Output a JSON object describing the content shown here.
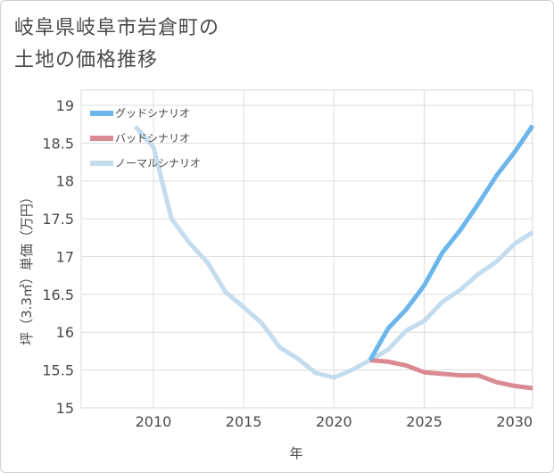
{
  "chart_data": {
    "type": "line",
    "title_lines": [
      "岐阜県岐阜市岩倉町の",
      "土地の価格推移"
    ],
    "xlabel": "年",
    "ylabel": "坪（3.3㎡）単価（万円）",
    "xlim": [
      2006,
      2031
    ],
    "ylim": [
      15,
      19.2
    ],
    "x_ticks": [
      2010,
      2015,
      2020,
      2025,
      2030
    ],
    "y_ticks": [
      15,
      15.5,
      16,
      16.5,
      17,
      17.5,
      18,
      18.5,
      19
    ],
    "y_tick_labels": [
      "15",
      "15.5",
      "16",
      "16.5",
      "17",
      "17.5",
      "18",
      "18.5",
      "19"
    ],
    "grid": true,
    "legend_position": "top-left",
    "series": [
      {
        "name": "グッドシナリオ",
        "color": "#6cb6ec",
        "x": [
          2022,
          2023,
          2024,
          2025,
          2026,
          2027,
          2028,
          2029,
          2030,
          2031
        ],
        "y": [
          15.63,
          16.05,
          16.3,
          16.62,
          17.05,
          17.35,
          17.7,
          18.07,
          18.38,
          18.73
        ]
      },
      {
        "name": "バッドシナリオ",
        "color": "#d98a93",
        "x": [
          2022,
          2023,
          2024,
          2025,
          2026,
          2027,
          2028,
          2029,
          2030,
          2031
        ],
        "y": [
          15.63,
          15.61,
          15.56,
          15.47,
          15.45,
          15.43,
          15.43,
          15.34,
          15.29,
          15.26
        ]
      },
      {
        "name": "ノーマルシナリオ",
        "color": "#c3dcee",
        "x": [
          2009,
          2010,
          2011,
          2012,
          2013,
          2014,
          2015,
          2016,
          2017,
          2018,
          2019,
          2020,
          2021,
          2022,
          2023,
          2024,
          2025,
          2026,
          2027,
          2028,
          2029,
          2030,
          2031
        ],
        "y": [
          18.72,
          18.45,
          17.5,
          17.18,
          16.92,
          16.53,
          16.33,
          16.12,
          15.8,
          15.65,
          15.46,
          15.4,
          15.5,
          15.63,
          15.77,
          16.02,
          16.15,
          16.4,
          16.56,
          16.77,
          16.93,
          17.17,
          17.32
        ]
      }
    ]
  }
}
